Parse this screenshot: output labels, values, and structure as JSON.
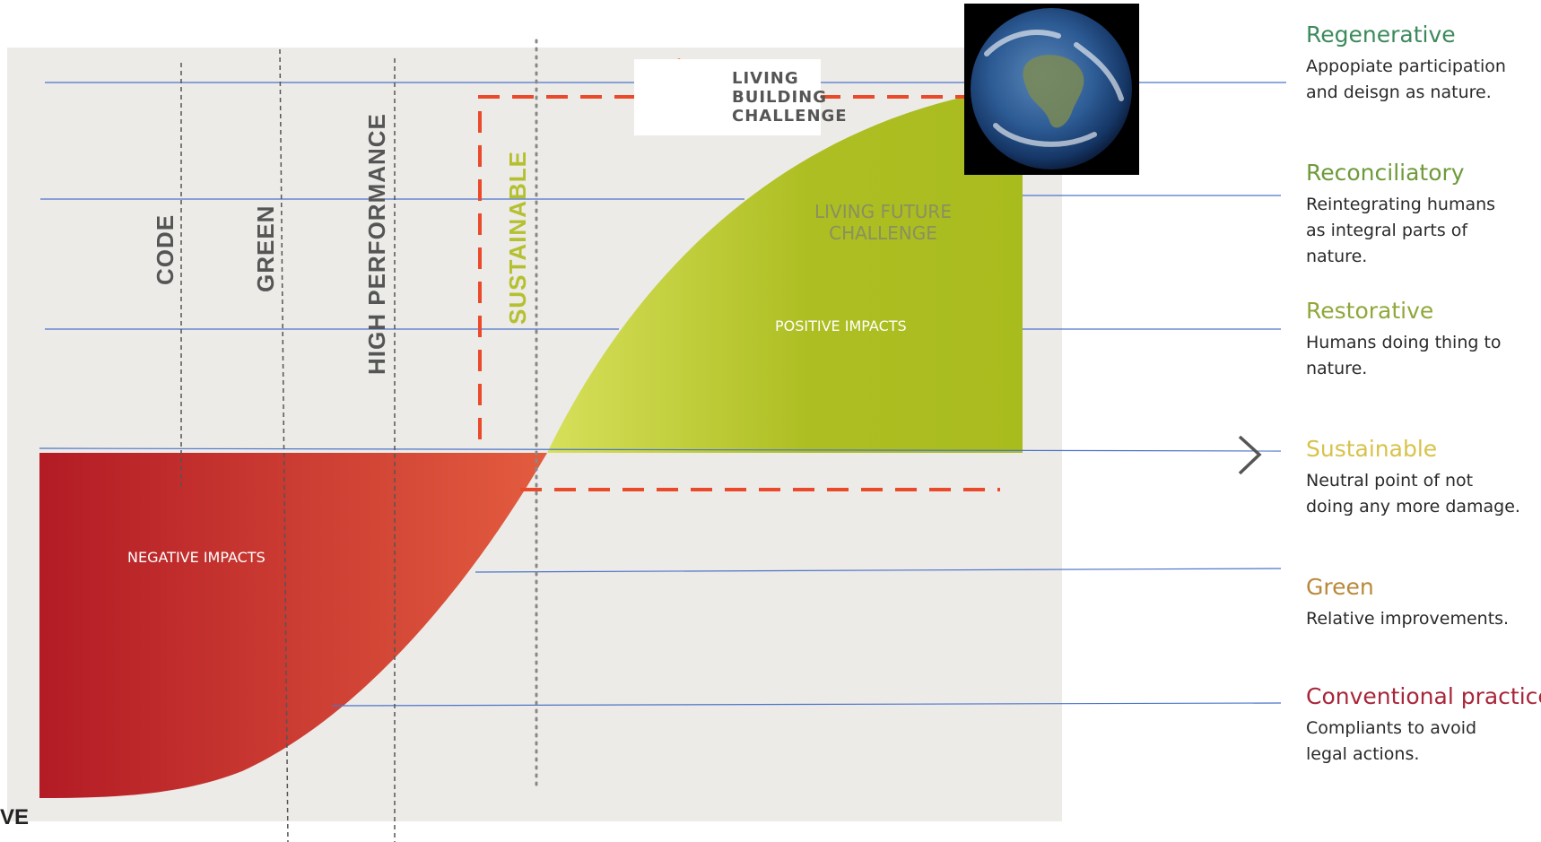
{
  "stages": [
    {
      "label": "CODE",
      "color": "#555555"
    },
    {
      "label": "GREEN",
      "color": "#555555"
    },
    {
      "label": "HIGH PERFORMANCE",
      "color": "#555555"
    },
    {
      "label": "SUSTAINABLE",
      "color": "#b5c030"
    }
  ],
  "regions": {
    "negative": "NEGATIVE IMPACTS",
    "positive": "POSITIVE IMPACTS",
    "living_future": "LIVING FUTURE\nCHALLENGE"
  },
  "logo": {
    "text": "LIVING\nBUILDING\nCHALLENGE",
    "flower_color": "#f07a2a"
  },
  "corner_text": "VE",
  "legend": [
    {
      "title": "Regenerative",
      "color": "#3c8a5c",
      "desc": "Appopiate participation\nand deisgn as nature."
    },
    {
      "title": "Reconciliatory",
      "color": "#6e9a3a",
      "desc": "Reintegrating humans\nas integral parts of\nnature."
    },
    {
      "title": "Restorative",
      "color": "#8fa83a",
      "desc": "Humans doing thing to\nnature."
    },
    {
      "title": "Sustainable",
      "color": "#d8c24a",
      "desc": "Neutral point of not\ndoing any more damage."
    },
    {
      "title": "Green",
      "color": "#b8893a",
      "desc": "Relative improvements."
    },
    {
      "title": "Conventional practice",
      "color": "#a8263a",
      "desc": "Compliants to avoid\nlegal actions."
    }
  ],
  "colors": {
    "background_panel": "#ecebe8",
    "negative_start": "#b31b25",
    "negative_end": "#e35c3f",
    "positive_start": "#d7e05a",
    "positive_end": "#a9bc1e",
    "dashed_frame": "#ea4a2a",
    "guide_line": "#4c73c9"
  }
}
